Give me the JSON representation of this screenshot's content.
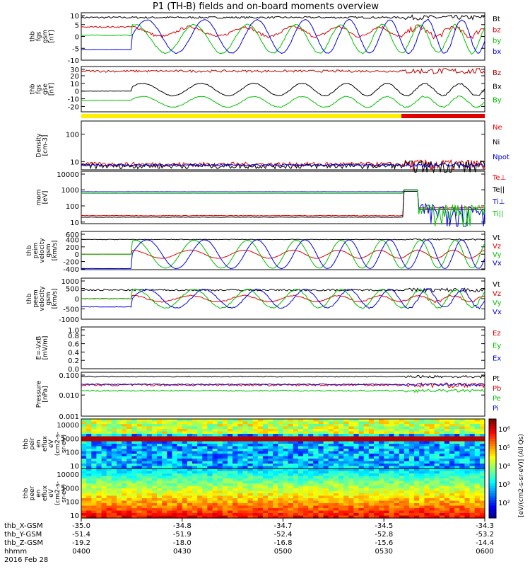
{
  "chart_data": {
    "type": "line",
    "title": "P1  (TH-B) fields and on-board moments overview",
    "date_label": "2016 Feb 28",
    "x_row_labels": [
      "thb_X-GSM",
      "thb_Y-GSM",
      "thb_Z-GSM",
      "hhmm"
    ],
    "x_ticks": [
      {
        "hhmm": "0400",
        "x": "-35.0",
        "y": "-51.4",
        "z": "-19.2"
      },
      {
        "hhmm": "0430",
        "x": "-34.8",
        "y": "-51.9",
        "z": "-18.0"
      },
      {
        "hhmm": "0500",
        "x": "-34.7",
        "y": "-52.4",
        "z": "-16.8"
      },
      {
        "hhmm": "0530",
        "x": "-34.5",
        "y": "-52.8",
        "z": "-15.6"
      },
      {
        "hhmm": "0600",
        "x": "-34.3",
        "y": "-53.2",
        "z": "-14.4"
      }
    ],
    "panels": [
      {
        "ylabel": [
          "thb",
          "fgs",
          "gsm",
          "[nT]"
        ],
        "yticks": [
          "10",
          "5",
          "0",
          "-5",
          "-10"
        ],
        "scale": "linear",
        "ylim": [
          -10,
          10
        ],
        "series": [
          {
            "name": "Bt",
            "color": "#000000",
            "kind": "noise",
            "level": 8.0,
            "noise": 0.4
          },
          {
            "name": "bz",
            "color": "#e00000",
            "kind": "sine",
            "pre": 4.0,
            "amp": 2.0,
            "offset": 2.0,
            "phase": 1.6,
            "noise": 0.6
          },
          {
            "name": "by",
            "color": "#00c000",
            "kind": "sine",
            "pre": 0.5,
            "amp": 6.0,
            "offset": -1.0,
            "phase": 1.2,
            "noise": 0.3
          },
          {
            "name": "bx",
            "color": "#0000e0",
            "kind": "sine",
            "pre": -5.5,
            "amp": 7.0,
            "offset": 0.0,
            "phase": 0.0,
            "noise": 0.2
          }
        ]
      },
      {
        "ylabel": [
          "thb",
          "fgs",
          "gse",
          "[nT]"
        ],
        "yticks": [
          "30",
          "20",
          "10",
          "0",
          "-10",
          "-20"
        ],
        "scale": "linear",
        "ylim": [
          -27,
          32
        ],
        "series": [
          {
            "name": "Bz",
            "color": "#c00000",
            "kind": "noise",
            "level": 26.0,
            "noise": 1.5
          },
          {
            "name": "Bx",
            "color": "#000000",
            "kind": "sine",
            "pre": 0.0,
            "amp": 8.0,
            "offset": 2.0,
            "phase": 0.4,
            "noise": 0.5
          },
          {
            "name": "By",
            "color": "#00c000",
            "kind": "sine",
            "pre": -12.0,
            "amp": 7.0,
            "offset": -14.0,
            "phase": 0.4,
            "noise": 0.5
          }
        ]
      },
      {
        "ylabel": [
          "Density",
          "[cm-3]"
        ],
        "yticks": [
          "100",
          "10"
        ],
        "scale": "log",
        "ylim": [
          5,
          300
        ],
        "series": [
          {
            "name": "Ne",
            "color": "#e00000",
            "kind": "noise",
            "level": 8.0,
            "noise": 1.5
          },
          {
            "name": "Ni",
            "color": "#000000",
            "kind": "noise",
            "level": 7.0,
            "noise": 1.5
          },
          {
            "name": "Npot",
            "color": "#0000e0",
            "kind": "noise",
            "level": 7.5,
            "noise": 0.5
          }
        ]
      },
      {
        "ylabel": [
          "mom",
          "[eV]"
        ],
        "yticks": [
          "10000",
          "1000",
          "100",
          "10"
        ],
        "scale": "log",
        "ylim": [
          8,
          14000
        ],
        "series": [
          {
            "name": "Te⊥",
            "color": "#e00000",
            "kind": "step",
            "level": 25.0,
            "noise": 2.0
          },
          {
            "name": "Te||",
            "color": "#000000",
            "kind": "step",
            "level": 20.0,
            "noise": 1.0
          },
          {
            "name": "Ti⊥",
            "color": "#0000e0",
            "kind": "step",
            "level": 750.0,
            "noise": 10.0
          },
          {
            "name": "Ti||",
            "color": "#00c000",
            "kind": "step",
            "level": 600.0,
            "noise": 10.0
          }
        ]
      },
      {
        "ylabel": [
          "thb",
          "peim",
          "velocity",
          "gsm",
          "[km/s]"
        ],
        "yticks": [
          "600",
          "400",
          "200",
          "0",
          "-200",
          "-400"
        ],
        "scale": "linear",
        "ylim": [
          -420,
          620
        ],
        "series": [
          {
            "name": "Vt",
            "color": "#000000",
            "kind": "noise",
            "level": 400.0,
            "noise": 8.0
          },
          {
            "name": "Vz",
            "color": "#e00000",
            "kind": "sine",
            "pre": 0.0,
            "amp": 110.0,
            "offset": 0.0,
            "phase": 1.6,
            "noise": 5.0
          },
          {
            "name": "Vy",
            "color": "#00c000",
            "kind": "sine",
            "pre": 0.0,
            "amp": 380.0,
            "offset": 0.0,
            "phase": 1.2,
            "noise": 5.0
          },
          {
            "name": "Vx",
            "color": "#0000e0",
            "kind": "sine",
            "pre": -390.0,
            "amp": 390.0,
            "offset": 0.0,
            "phase": 0.0,
            "noise": 5.0
          }
        ]
      },
      {
        "ylabel": [
          "thb",
          "peem",
          "velocity",
          "gsm",
          "[km/s]"
        ],
        "yticks": [
          "1000",
          "500",
          "0",
          "-500",
          "-1000"
        ],
        "scale": "linear",
        "ylim": [
          -1000,
          1000
        ],
        "series": [
          {
            "name": "Vt",
            "color": "#000000",
            "kind": "noise",
            "level": 420.0,
            "noise": 40.0
          },
          {
            "name": "Vz",
            "color": "#e00000",
            "kind": "sine",
            "pre": 0.0,
            "amp": 150.0,
            "offset": 0.0,
            "phase": 1.6,
            "noise": 30.0
          },
          {
            "name": "Vy",
            "color": "#00c000",
            "kind": "sine",
            "pre": 0.0,
            "amp": 450.0,
            "offset": 0.0,
            "phase": 1.2,
            "noise": 30.0
          },
          {
            "name": "Vx",
            "color": "#0000e0",
            "kind": "sine",
            "pre": -400.0,
            "amp": 450.0,
            "offset": 0.0,
            "phase": 0.0,
            "noise": 30.0
          }
        ]
      },
      {
        "ylabel": [
          "E=-VxB",
          "[mV/m]"
        ],
        "yticks": [
          "1.0",
          "0.8",
          "0.6",
          "0.4",
          "0.2",
          "0.0"
        ],
        "scale": "linear",
        "ylim": [
          0,
          1
        ],
        "series": [
          {
            "name": "Ez",
            "color": "#e00000",
            "kind": "none"
          },
          {
            "name": "Ey",
            "color": "#00c000",
            "kind": "none"
          },
          {
            "name": "Ex",
            "color": "#0000e0",
            "kind": "none"
          }
        ]
      },
      {
        "ylabel": [
          "Pressure",
          "[nPa]"
        ],
        "yticks": [
          "0.100",
          "0.010",
          "0.001"
        ],
        "scale": "log",
        "ylim": [
          0.001,
          0.12
        ],
        "series": [
          {
            "name": "Pt",
            "color": "#000000",
            "kind": "noise",
            "level": 0.075,
            "noise": 0.004
          },
          {
            "name": "Pb",
            "color": "#e00000",
            "kind": "noise",
            "level": 0.03,
            "noise": 0.003
          },
          {
            "name": "Pe",
            "color": "#00c000",
            "kind": "noise",
            "level": 0.016,
            "noise": 0.001
          },
          {
            "name": "Pi",
            "color": "#0000e0",
            "kind": "noise",
            "level": 0.032,
            "noise": 0.002
          }
        ]
      }
    ],
    "spectrograms": [
      {
        "ylabel": [
          "thb",
          "peir",
          "en",
          "eflux",
          "eV",
          "(cm2-s-",
          "sr-eV)"
        ],
        "yticks": [
          "10000",
          "1000",
          "100",
          "10"
        ]
      },
      {
        "ylabel": [
          "thb",
          "peer",
          "en",
          "eflux",
          "eV",
          "(cm2-s-",
          "sr-eV)"
        ],
        "yticks": [
          "10000",
          "1000",
          "100",
          "10"
        ]
      }
    ],
    "colorbar": {
      "ticks": [
        "10⁶",
        "10⁵",
        "10⁴",
        "10³",
        "10²"
      ],
      "label": "[eV/(cm2-s-sr-eV)] (All Qs)"
    }
  }
}
